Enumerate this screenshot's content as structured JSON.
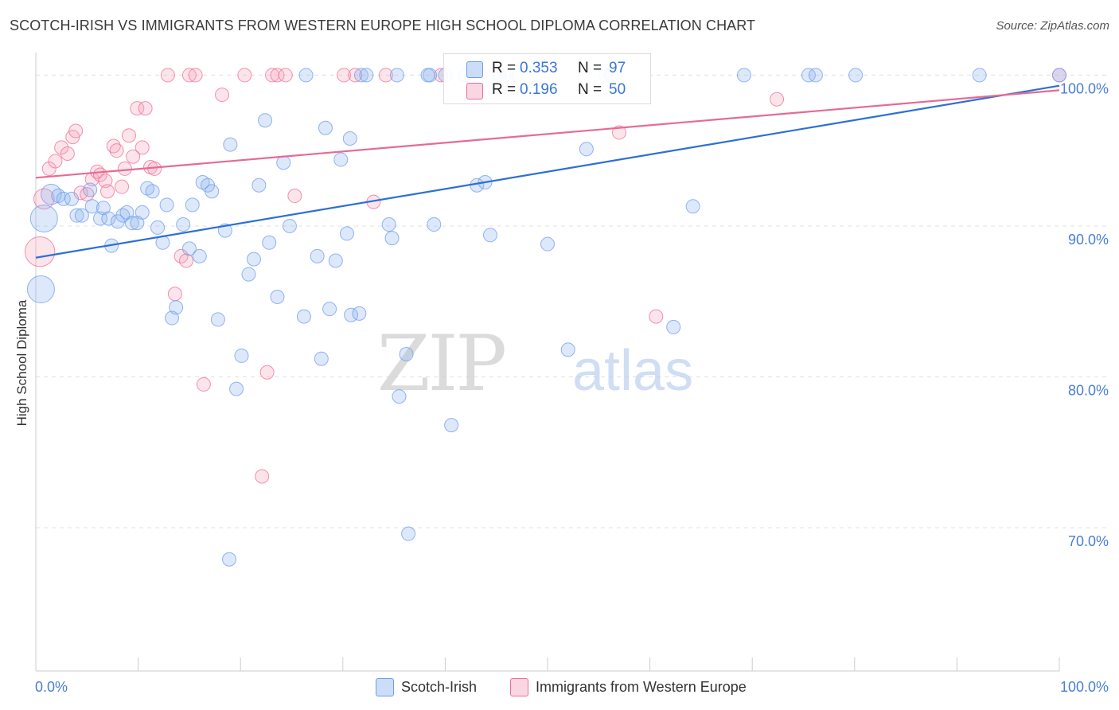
{
  "title": "SCOTCH-IRISH VS IMMIGRANTS FROM WESTERN EUROPE HIGH SCHOOL DIPLOMA CORRELATION CHART",
  "source": "Source: ZipAtlas.com",
  "watermark": {
    "zip": "ZIP",
    "atlas": "atlas"
  },
  "colors": {
    "blue": "#6d9eeb",
    "blue_fill": "rgba(141,180,237,0.30)",
    "blue_line": "#2d6fd6",
    "pink": "#f06d96",
    "pink_fill": "rgba(244,164,190,0.30)",
    "pink_line": "#e56b94",
    "axis_text": "#4a7ed6",
    "grid": "#e0e0e0"
  },
  "legend": {
    "rows": [
      {
        "r_label": "R =",
        "r_value": "0.353",
        "n_label": "N =",
        "n_value": "97"
      },
      {
        "r_label": "R =",
        "r_value": "0.196",
        "n_label": "N =",
        "n_value": "50"
      }
    ]
  },
  "bottom_legend": {
    "series1": "Scotch-Irish",
    "series2": "Immigrants from Western Europe"
  },
  "chart_data": {
    "type": "scatter",
    "title": "SCOTCH-IRISH VS IMMIGRANTS FROM WESTERN EUROPE HIGH SCHOOL DIPLOMA CORRELATION CHART",
    "xlabel": "",
    "ylabel": "High School Diploma",
    "xlim": [
      0,
      100
    ],
    "ylim": [
      60.5,
      101.5
    ],
    "x_tick_labels": [
      "0.0%",
      "100.0%"
    ],
    "y_ticks": [
      70,
      80,
      90,
      100
    ],
    "y_tick_labels": [
      "70.0%",
      "80.0%",
      "90.0%",
      "100.0%"
    ],
    "grid": true,
    "legend_position": "top-center",
    "series": [
      {
        "name": "Scotch-Irish",
        "r": 0.353,
        "n": 97,
        "trend": {
          "x": [
            0,
            100
          ],
          "y": [
            87.9,
            99.3
          ]
        },
        "points": [
          [
            0.8,
            90.5,
            2
          ],
          [
            0.5,
            85.8,
            2
          ],
          [
            1.5,
            92.1,
            1.5
          ],
          [
            2.2,
            92,
            1
          ],
          [
            2.7,
            91.8,
            1
          ],
          [
            3.5,
            91.8,
            1
          ],
          [
            4,
            90.7,
            1
          ],
          [
            4.5,
            90.7,
            1
          ],
          [
            5.5,
            91.3,
            1
          ],
          [
            5.3,
            92.4,
            1
          ],
          [
            6.3,
            90.5,
            1
          ],
          [
            6.6,
            91.2,
            1
          ],
          [
            7.1,
            90.5,
            1
          ],
          [
            7.4,
            88.7,
            1
          ],
          [
            8,
            90.3,
            1
          ],
          [
            8.5,
            90.7,
            1
          ],
          [
            8.9,
            90.9,
            1
          ],
          [
            9.4,
            90.2,
            1
          ],
          [
            9.9,
            90.2,
            1
          ],
          [
            10.4,
            90.9,
            1
          ],
          [
            10.9,
            92.5,
            1
          ],
          [
            11.4,
            92.3,
            1
          ],
          [
            11.9,
            89.9,
            1
          ],
          [
            12.4,
            88.9,
            1
          ],
          [
            12.8,
            91.4,
            1
          ],
          [
            13.3,
            83.9,
            1
          ],
          [
            13.7,
            84.6,
            1
          ],
          [
            14.4,
            90.1,
            1
          ],
          [
            15,
            88.5,
            1
          ],
          [
            15.3,
            91.4,
            1
          ],
          [
            16,
            88,
            1
          ],
          [
            16.3,
            92.9,
            1
          ],
          [
            16.8,
            92.7,
            1
          ],
          [
            17.2,
            92.3,
            1
          ],
          [
            17.8,
            83.8,
            1
          ],
          [
            18.5,
            89.7,
            1
          ],
          [
            19,
            95.4,
            1
          ],
          [
            19.6,
            79.2,
            1
          ],
          [
            20.1,
            81.4,
            1
          ],
          [
            20.8,
            86.8,
            1
          ],
          [
            21.3,
            87.8,
            1
          ],
          [
            21.8,
            92.7,
            1
          ],
          [
            22.4,
            97,
            1
          ],
          [
            22.8,
            88.9,
            1
          ],
          [
            23.6,
            85.3,
            1
          ],
          [
            24.2,
            94.2,
            1
          ],
          [
            24.8,
            90,
            1
          ],
          [
            26.2,
            84,
            1
          ],
          [
            26.4,
            100,
            1
          ],
          [
            27.5,
            88,
            1
          ],
          [
            27.9,
            81.2,
            1
          ],
          [
            28.3,
            96.5,
            1
          ],
          [
            28.7,
            84.5,
            1
          ],
          [
            29.3,
            87.7,
            1
          ],
          [
            29.8,
            94.4,
            1
          ],
          [
            30.4,
            89.5,
            1
          ],
          [
            30.7,
            95.8,
            1
          ],
          [
            30.8,
            84.1,
            1
          ],
          [
            31.6,
            84.2,
            1
          ],
          [
            31.8,
            100,
            1
          ],
          [
            32.3,
            100,
            1
          ],
          [
            34.5,
            90.1,
            1
          ],
          [
            34.8,
            89.2,
            1
          ],
          [
            35.3,
            100,
            1
          ],
          [
            35.5,
            78.7,
            1
          ],
          [
            36.2,
            81.5,
            1
          ],
          [
            36.4,
            69.6,
            1
          ],
          [
            38.3,
            100,
            1
          ],
          [
            38.5,
            100,
            1
          ],
          [
            38.9,
            90.1,
            1
          ],
          [
            40,
            100,
            1
          ],
          [
            40.6,
            76.8,
            1
          ],
          [
            42,
            100,
            1
          ],
          [
            43.1,
            92.7,
            1
          ],
          [
            43.9,
            92.9,
            1
          ],
          [
            44.4,
            89.4,
            1
          ],
          [
            45.3,
            100,
            1
          ],
          [
            46,
            100,
            1
          ],
          [
            47,
            100,
            1
          ],
          [
            50,
            88.8,
            1
          ],
          [
            52,
            81.8,
            1
          ],
          [
            53.8,
            95.1,
            1
          ],
          [
            55.7,
            100,
            1
          ],
          [
            56.2,
            100,
            1
          ],
          [
            62.3,
            83.3,
            1
          ],
          [
            64.2,
            91.3,
            1
          ],
          [
            69.2,
            100,
            1
          ],
          [
            75.5,
            100,
            1
          ],
          [
            76.2,
            100,
            1
          ],
          [
            80.1,
            100,
            1
          ],
          [
            92.2,
            100,
            1
          ],
          [
            100,
            100,
            1
          ],
          [
            18.9,
            67.9,
            1
          ]
        ]
      },
      {
        "name": "Immigrants from Western Europe",
        "r": 0.196,
        "n": 50,
        "trend": {
          "x": [
            0,
            100
          ],
          "y": [
            93.2,
            99
          ]
        },
        "points": [
          [
            0.4,
            88.3,
            2.2
          ],
          [
            0.8,
            91.8,
            1.5
          ],
          [
            1.3,
            93.8,
            1
          ],
          [
            1.9,
            94.3,
            1
          ],
          [
            2.5,
            95.2,
            1
          ],
          [
            3.1,
            94.8,
            1
          ],
          [
            3.6,
            95.9,
            1
          ],
          [
            3.9,
            96.3,
            1
          ],
          [
            4.4,
            92.2,
            1
          ],
          [
            5,
            92.1,
            1
          ],
          [
            5.5,
            93.1,
            1
          ],
          [
            6,
            93.6,
            1
          ],
          [
            6.3,
            93.4,
            1
          ],
          [
            6.8,
            93,
            1
          ],
          [
            7,
            92.3,
            1
          ],
          [
            7.6,
            95.3,
            1
          ],
          [
            7.9,
            95,
            1
          ],
          [
            8.4,
            92.6,
            1
          ],
          [
            8.7,
            93.8,
            1
          ],
          [
            9.1,
            96,
            1
          ],
          [
            9.5,
            94.6,
            1
          ],
          [
            9.9,
            97.8,
            1
          ],
          [
            10.4,
            95.2,
            1
          ],
          [
            10.7,
            97.8,
            1
          ],
          [
            11.2,
            93.9,
            1
          ],
          [
            11.6,
            93.8,
            1
          ],
          [
            12.9,
            100,
            1
          ],
          [
            13.6,
            85.5,
            1
          ],
          [
            14.2,
            88,
            1
          ],
          [
            14.7,
            87.7,
            1
          ],
          [
            15,
            100,
            1
          ],
          [
            15.6,
            100,
            1
          ],
          [
            16.4,
            79.5,
            1
          ],
          [
            18.2,
            98.7,
            1
          ],
          [
            20.4,
            100,
            1
          ],
          [
            22.1,
            73.4,
            1
          ],
          [
            22.6,
            80.3,
            1
          ],
          [
            23.1,
            100,
            1
          ],
          [
            23.6,
            100,
            1
          ],
          [
            24.4,
            100,
            1
          ],
          [
            25.3,
            92,
            1
          ],
          [
            30.1,
            100,
            1
          ],
          [
            31.2,
            100,
            1
          ],
          [
            33,
            91.6,
            1
          ],
          [
            34.2,
            100,
            1
          ],
          [
            39.6,
            100,
            1
          ],
          [
            57,
            96.2,
            1
          ],
          [
            60.6,
            84,
            1
          ],
          [
            72.4,
            98.4,
            1
          ],
          [
            100,
            100,
            1
          ]
        ]
      }
    ]
  }
}
